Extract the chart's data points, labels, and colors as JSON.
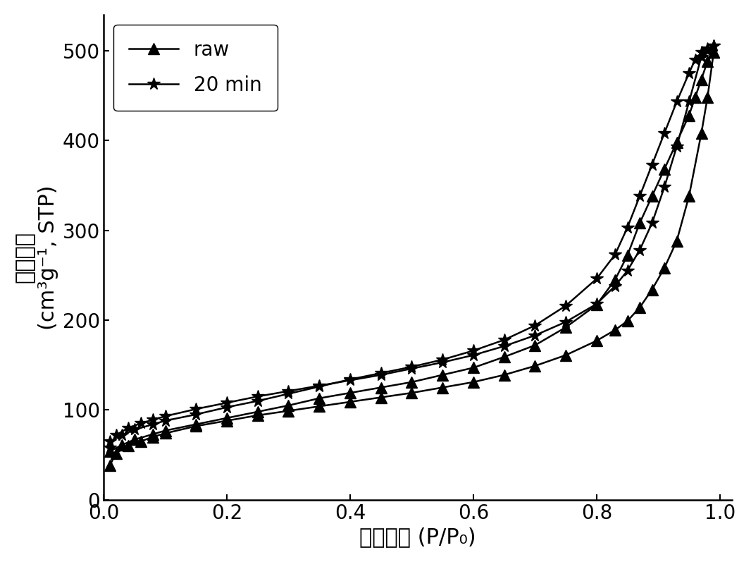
{
  "xlabel_cn": "相对压力",
  "xlabel_en": " (P/P₀)",
  "ylabel_line1": "吸附体积",
  "ylabel_line2": "(cm³g⁻¹, STP)",
  "xlim": [
    0.0,
    1.02
  ],
  "ylim": [
    0,
    540
  ],
  "yticks": [
    0,
    100,
    200,
    300,
    400,
    500
  ],
  "xticks": [
    0.0,
    0.2,
    0.4,
    0.6,
    0.8,
    1.0
  ],
  "background_color": "#ffffff",
  "line_color": "#000000",
  "legend_entries": [
    "raw",
    "20 min"
  ],
  "raw_adsorption_x": [
    0.01,
    0.02,
    0.04,
    0.06,
    0.08,
    0.1,
    0.15,
    0.2,
    0.25,
    0.3,
    0.35,
    0.4,
    0.45,
    0.5,
    0.55,
    0.6,
    0.65,
    0.7,
    0.75,
    0.8,
    0.83,
    0.85,
    0.87,
    0.89,
    0.91,
    0.93,
    0.95,
    0.97,
    0.98,
    0.99
  ],
  "raw_adsorption_y": [
    38,
    52,
    60,
    65,
    70,
    74,
    82,
    88,
    94,
    99,
    104,
    109,
    114,
    119,
    125,
    131,
    139,
    149,
    161,
    177,
    189,
    199,
    214,
    234,
    258,
    288,
    338,
    408,
    448,
    498
  ],
  "raw_desorption_x": [
    0.99,
    0.98,
    0.97,
    0.96,
    0.95,
    0.93,
    0.91,
    0.89,
    0.87,
    0.85,
    0.83,
    0.8,
    0.75,
    0.7,
    0.65,
    0.6,
    0.55,
    0.5,
    0.45,
    0.4,
    0.35,
    0.3,
    0.25,
    0.2,
    0.15,
    0.1,
    0.08,
    0.05,
    0.03,
    0.01
  ],
  "raw_desorption_y": [
    498,
    488,
    468,
    448,
    428,
    398,
    368,
    338,
    308,
    272,
    245,
    217,
    192,
    172,
    159,
    147,
    139,
    131,
    125,
    119,
    113,
    105,
    98,
    91,
    84,
    77,
    73,
    67,
    61,
    54
  ],
  "min20_adsorption_x": [
    0.01,
    0.02,
    0.04,
    0.06,
    0.08,
    0.1,
    0.15,
    0.2,
    0.25,
    0.3,
    0.35,
    0.4,
    0.45,
    0.5,
    0.55,
    0.6,
    0.65,
    0.7,
    0.75,
    0.8,
    0.83,
    0.85,
    0.87,
    0.89,
    0.91,
    0.93,
    0.95,
    0.97,
    0.98,
    0.99
  ],
  "min20_adsorption_y": [
    58,
    72,
    80,
    85,
    89,
    93,
    101,
    108,
    115,
    121,
    127,
    133,
    139,
    146,
    153,
    161,
    171,
    183,
    198,
    218,
    238,
    255,
    278,
    308,
    348,
    393,
    443,
    493,
    500,
    505
  ],
  "min20_desorption_x": [
    0.99,
    0.98,
    0.97,
    0.96,
    0.95,
    0.93,
    0.91,
    0.89,
    0.87,
    0.85,
    0.83,
    0.8,
    0.75,
    0.7,
    0.65,
    0.6,
    0.55,
    0.5,
    0.45,
    0.4,
    0.35,
    0.3,
    0.25,
    0.2,
    0.15,
    0.1,
    0.08,
    0.05,
    0.03,
    0.01
  ],
  "min20_desorption_y": [
    505,
    502,
    498,
    490,
    475,
    443,
    408,
    373,
    338,
    303,
    273,
    246,
    216,
    194,
    178,
    166,
    156,
    148,
    141,
    134,
    126,
    118,
    110,
    103,
    95,
    88,
    84,
    78,
    72,
    65
  ],
  "fontsize_label": 22,
  "fontsize_tick": 20,
  "fontsize_legend": 20,
  "marker_size_triangle": 11,
  "marker_size_star": 13,
  "line_width": 1.8
}
